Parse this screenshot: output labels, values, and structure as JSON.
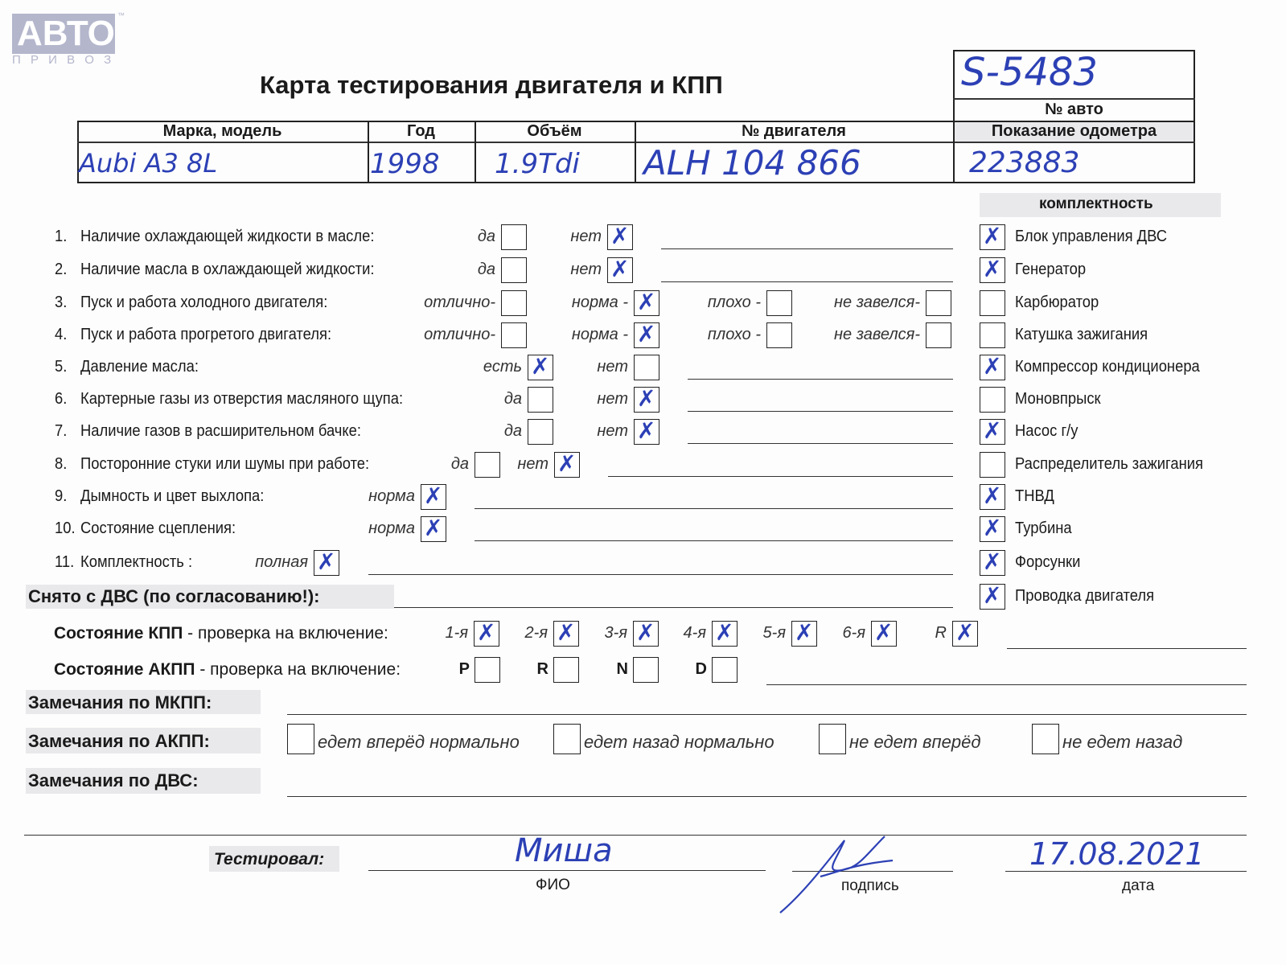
{
  "logo": {
    "text": "АВТО",
    "sub": "П Р И В О З",
    "tm": "™"
  },
  "title": "Карта тестирования двигателя  и КПП",
  "car_no": {
    "label": "№ авто",
    "value": "S-5483"
  },
  "header": {
    "columns": [
      "Марка, модель",
      "Год",
      "Объём",
      "№ двигателя",
      "Показание одометра"
    ],
    "values": [
      "Aubi  A3   8L",
      "1998",
      "1.9Tdi",
      "ALH 104 866",
      "223883"
    ]
  },
  "questions": [
    {
      "n": "1.",
      "label": "Наличие охлаждающей жидкости в масле:",
      "options": [
        {
          "label": "да",
          "checked": false
        },
        {
          "label": "нет",
          "checked": true
        }
      ]
    },
    {
      "n": "2.",
      "label": "Наличие масла в охлаждающей жидкости:",
      "options": [
        {
          "label": "да",
          "checked": false
        },
        {
          "label": "нет",
          "checked": true
        }
      ]
    },
    {
      "n": "3.",
      "label": "Пуск и работа холодного двигателя:",
      "options": [
        {
          "label": "отлично-",
          "checked": false
        },
        {
          "label": "норма -",
          "checked": true
        },
        {
          "label": "плохо -",
          "checked": false
        },
        {
          "label": "не завелся-",
          "checked": false
        }
      ]
    },
    {
      "n": "4.",
      "label": "Пуск и работа прогретого двигателя:",
      "options": [
        {
          "label": "отлично-",
          "checked": false
        },
        {
          "label": "норма -",
          "checked": true
        },
        {
          "label": "плохо -",
          "checked": false
        },
        {
          "label": "не завелся-",
          "checked": false
        }
      ]
    },
    {
      "n": "5.",
      "label": "Давление масла:",
      "options": [
        {
          "label": "есть",
          "checked": true
        },
        {
          "label": "нет",
          "checked": false
        }
      ]
    },
    {
      "n": "6.",
      "label": "Картерные газы из отверстия масляного щупа:",
      "options": [
        {
          "label": "да",
          "checked": false
        },
        {
          "label": "нет",
          "checked": true
        }
      ]
    },
    {
      "n": "7.",
      "label": "Наличие газов в расширительном бачке:",
      "options": [
        {
          "label": "да",
          "checked": false
        },
        {
          "label": "нет",
          "checked": true
        }
      ]
    },
    {
      "n": "8.",
      "label": "Посторонние стуки или шумы при работе:",
      "options": [
        {
          "label": "да",
          "checked": false
        },
        {
          "label": "нет",
          "checked": true
        }
      ]
    },
    {
      "n": "9.",
      "label": "Дымность и цвет выхлопа:",
      "options": [
        {
          "label": "норма",
          "checked": true
        }
      ]
    },
    {
      "n": "10.",
      "label": "Состояние сцепления:",
      "options": [
        {
          "label": "норма",
          "checked": true
        }
      ]
    },
    {
      "n": "11.",
      "label": "Комплектность :",
      "options": [
        {
          "label": "полная",
          "checked": true
        }
      ]
    }
  ],
  "removed": {
    "label": "Снято с ДВС (по согласованию!):"
  },
  "completeness": {
    "title": "комплектность",
    "items": [
      {
        "label": "Блок управления ДВС",
        "checked": true
      },
      {
        "label": "Генератор",
        "checked": true
      },
      {
        "label": "Карбюратор",
        "checked": false
      },
      {
        "label": "Катушка зажигания",
        "checked": false
      },
      {
        "label": "Компрессор кондиционера",
        "checked": true
      },
      {
        "label": "Моновпрыск",
        "checked": false
      },
      {
        "label": "Насос г/у",
        "checked": true
      },
      {
        "label": "Распределитель зажигания",
        "checked": false
      },
      {
        "label": "ТНВД",
        "checked": true
      },
      {
        "label": "Турбина",
        "checked": true
      },
      {
        "label": "Форсунки",
        "checked": true
      },
      {
        "label": "Проводка двигателя",
        "checked": true
      }
    ]
  },
  "kpp": {
    "label_bold": "Состояние КПП",
    "label": " - проверка на включение:",
    "gears": [
      {
        "label": "1-я",
        "checked": true
      },
      {
        "label": "2-я",
        "checked": true
      },
      {
        "label": "3-я",
        "checked": true
      },
      {
        "label": "4-я",
        "checked": true
      },
      {
        "label": "5-я",
        "checked": true
      },
      {
        "label": "6-я",
        "checked": true
      },
      {
        "label": "R",
        "checked": true
      }
    ]
  },
  "akpp": {
    "label_bold": "Состояние АКПП",
    "label": " - проверка на включение:",
    "modes": [
      {
        "label": "P",
        "checked": false
      },
      {
        "label": "R",
        "checked": false
      },
      {
        "label": "N",
        "checked": false
      },
      {
        "label": "D",
        "checked": false
      }
    ]
  },
  "remarks": {
    "mkpp": "Замечания по МКПП:",
    "akpp": "Замечания по АКПП:",
    "akpp_options": [
      {
        "label": "едет вперёд нормально",
        "checked": false
      },
      {
        "label": "едет назад нормально",
        "checked": false
      },
      {
        "label": "не едет вперёд",
        "checked": false
      },
      {
        "label": "не едет назад",
        "checked": false
      }
    ],
    "dvs": "Замечания по ДВС:"
  },
  "footer": {
    "tested_label": "Тестировал:",
    "name": "Миша",
    "name_caption": "ФИО",
    "signature_caption": "подпись",
    "date": "17.08.2021",
    "date_caption": "дата"
  },
  "colors": {
    "ink": "#2c40b5"
  }
}
